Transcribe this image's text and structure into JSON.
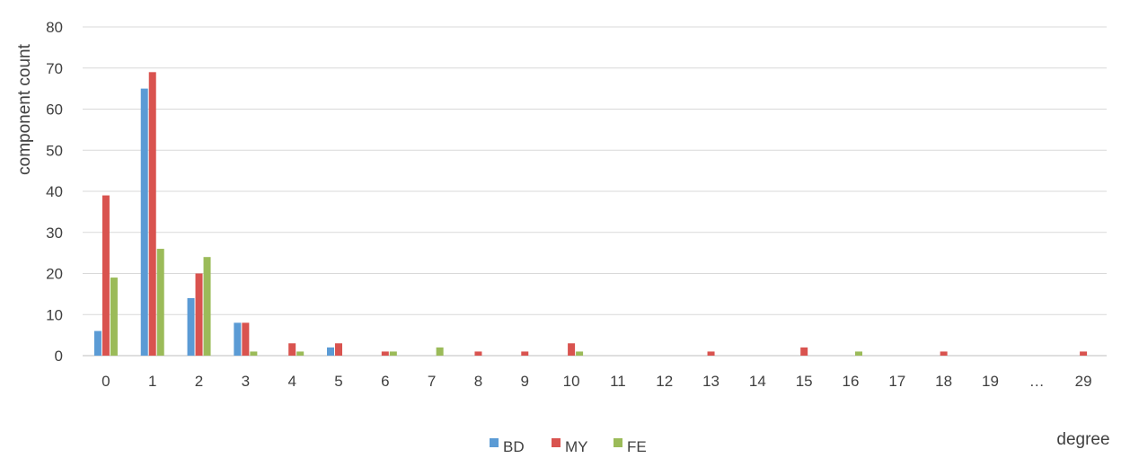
{
  "chart_data": {
    "type": "bar",
    "title": "",
    "xlabel": "degree",
    "ylabel": "component count",
    "ylim": [
      0,
      80
    ],
    "yticks": [
      0,
      10,
      20,
      30,
      40,
      50,
      60,
      70,
      80
    ],
    "grid": true,
    "legend_position": "bottom",
    "categories": [
      "0",
      "1",
      "2",
      "3",
      "4",
      "5",
      "6",
      "7",
      "8",
      "9",
      "10",
      "11",
      "12",
      "13",
      "14",
      "15",
      "16",
      "17",
      "18",
      "19",
      "…",
      "29"
    ],
    "series": [
      {
        "name": "BD",
        "color": "#5b9bd5",
        "values": [
          6,
          65,
          14,
          8,
          0,
          2,
          0,
          0,
          0,
          0,
          0,
          0,
          0,
          0,
          0,
          0,
          0,
          0,
          0,
          0,
          0,
          0
        ]
      },
      {
        "name": "MY",
        "color": "#d9534f",
        "values": [
          39,
          69,
          20,
          8,
          3,
          3,
          1,
          0,
          1,
          1,
          3,
          0,
          0,
          1,
          0,
          2,
          0,
          0,
          1,
          0,
          0,
          1
        ]
      },
      {
        "name": "FE",
        "color": "#9bbb59",
        "values": [
          19,
          26,
          24,
          1,
          1,
          0,
          1,
          2,
          0,
          0,
          1,
          0,
          0,
          0,
          0,
          0,
          1,
          0,
          0,
          0,
          0,
          0
        ]
      }
    ]
  }
}
